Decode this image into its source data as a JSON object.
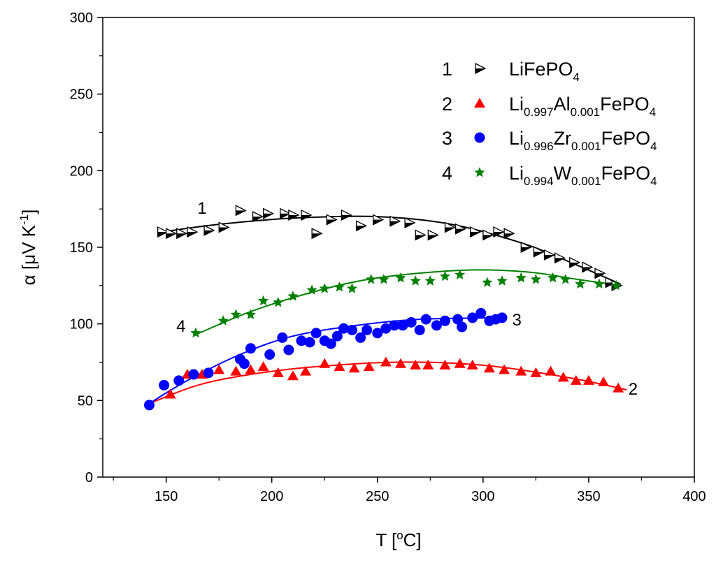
{
  "chart_data": {
    "type": "scatter",
    "title": "",
    "xlabel": {
      "base": "T [",
      "sup": "o",
      "tail": "C]"
    },
    "ylabel": {
      "base": "α [μV K",
      "sup": "-1",
      "tail": "]"
    },
    "xlim": [
      120,
      400
    ],
    "ylim": [
      0,
      300
    ],
    "xticks": [
      150,
      200,
      250,
      300,
      350,
      400
    ],
    "yticks": [
      0,
      50,
      100,
      150,
      200,
      250,
      300
    ],
    "xtick_labels": [
      "150",
      "200",
      "250",
      "300",
      "350",
      "400"
    ],
    "ytick_labels": [
      "0",
      "50",
      "100",
      "150",
      "200",
      "250",
      "300"
    ],
    "grid": false,
    "legend_position": "top-right",
    "series": [
      {
        "id": "1",
        "marker": "triangle-right",
        "color": "#000000",
        "fit_color": "#000000",
        "label_parts": [
          {
            "t": "LiFePO"
          },
          {
            "t": "4",
            "sub": true
          }
        ],
        "points": [
          [
            148,
            160
          ],
          [
            152,
            159
          ],
          [
            157,
            159
          ],
          [
            162,
            160
          ],
          [
            170,
            161
          ],
          [
            177,
            163
          ],
          [
            185,
            174
          ],
          [
            193,
            170
          ],
          [
            198,
            172
          ],
          [
            206,
            172
          ],
          [
            210,
            171
          ],
          [
            216,
            171
          ],
          [
            221,
            159
          ],
          [
            228,
            168
          ],
          [
            235,
            171
          ],
          [
            242,
            164
          ],
          [
            250,
            168
          ],
          [
            258,
            167
          ],
          [
            265,
            166
          ],
          [
            270,
            158
          ],
          [
            276,
            158
          ],
          [
            284,
            163
          ],
          [
            289,
            162
          ],
          [
            296,
            160
          ],
          [
            302,
            158
          ],
          [
            307,
            160
          ],
          [
            312,
            159
          ],
          [
            320,
            150
          ],
          [
            326,
            147
          ],
          [
            331,
            145
          ],
          [
            336,
            143
          ],
          [
            343,
            140
          ],
          [
            349,
            137
          ],
          [
            355,
            133
          ],
          [
            360,
            127
          ],
          [
            363,
            125
          ]
        ],
        "fit": [
          [
            148,
            160
          ],
          [
            175,
            165
          ],
          [
            210,
            169
          ],
          [
            250,
            170
          ],
          [
            285,
            165
          ],
          [
            320,
            152
          ],
          [
            345,
            138
          ],
          [
            365,
            126
          ]
        ]
      },
      {
        "id": "2",
        "marker": "triangle-up",
        "color": "#ff0000",
        "fit_color": "#ff0000",
        "label_parts": [
          {
            "t": "Li"
          },
          {
            "t": "0.997",
            "sub": true
          },
          {
            "t": "Al"
          },
          {
            "t": "0.001",
            "sub": true
          },
          {
            "t": "FePO"
          },
          {
            "t": "4",
            "sub": true
          }
        ],
        "points": [
          [
            152,
            54
          ],
          [
            160,
            67
          ],
          [
            167,
            67
          ],
          [
            175,
            70
          ],
          [
            183,
            69
          ],
          [
            190,
            70
          ],
          [
            196,
            72
          ],
          [
            203,
            68
          ],
          [
            210,
            66
          ],
          [
            216,
            69
          ],
          [
            225,
            74
          ],
          [
            232,
            72
          ],
          [
            239,
            71
          ],
          [
            246,
            72
          ],
          [
            254,
            75
          ],
          [
            261,
            74
          ],
          [
            268,
            73
          ],
          [
            274,
            73
          ],
          [
            282,
            73
          ],
          [
            289,
            74
          ],
          [
            295,
            73
          ],
          [
            303,
            71
          ],
          [
            310,
            70
          ],
          [
            318,
            69
          ],
          [
            325,
            68
          ],
          [
            332,
            69
          ],
          [
            338,
            65
          ],
          [
            344,
            63
          ],
          [
            350,
            63
          ],
          [
            357,
            62
          ],
          [
            364,
            58
          ]
        ],
        "fit": [
          [
            142,
            48
          ],
          [
            165,
            60
          ],
          [
            190,
            67
          ],
          [
            220,
            72
          ],
          [
            260,
            75
          ],
          [
            300,
            73
          ],
          [
            340,
            65
          ],
          [
            368,
            57
          ]
        ]
      },
      {
        "id": "3",
        "marker": "circle",
        "color": "#0000ff",
        "fit_color": "#0000ff",
        "label_parts": [
          {
            "t": "Li"
          },
          {
            "t": "0.996",
            "sub": true
          },
          {
            "t": "Zr"
          },
          {
            "t": "0.001",
            "sub": true
          },
          {
            "t": "FePO"
          },
          {
            "t": "4",
            "sub": true
          }
        ],
        "points": [
          [
            142,
            47
          ],
          [
            149,
            60
          ],
          [
            156,
            63
          ],
          [
            163,
            67
          ],
          [
            170,
            68
          ],
          [
            185,
            77
          ],
          [
            187,
            74
          ],
          [
            190,
            84
          ],
          [
            199,
            80
          ],
          [
            205,
            91
          ],
          [
            208,
            83
          ],
          [
            214,
            89
          ],
          [
            218,
            88
          ],
          [
            221,
            94
          ],
          [
            225,
            89
          ],
          [
            228,
            87
          ],
          [
            231,
            92
          ],
          [
            234,
            97
          ],
          [
            238,
            96
          ],
          [
            242,
            91
          ],
          [
            245,
            96
          ],
          [
            250,
            94
          ],
          [
            254,
            97
          ],
          [
            258,
            99
          ],
          [
            262,
            99
          ],
          [
            266,
            101
          ],
          [
            270,
            96
          ],
          [
            273,
            103
          ],
          [
            278,
            99
          ],
          [
            282,
            102
          ],
          [
            288,
            103
          ],
          [
            290,
            98
          ],
          [
            295,
            104
          ],
          [
            299,
            107
          ],
          [
            303,
            102
          ],
          [
            306,
            103
          ],
          [
            309,
            104
          ]
        ],
        "fit": [
          [
            142,
            48
          ],
          [
            160,
            63
          ],
          [
            185,
            80
          ],
          [
            210,
            92
          ],
          [
            240,
            99
          ],
          [
            270,
            103
          ],
          [
            308,
            104
          ]
        ]
      },
      {
        "id": "4",
        "marker": "star",
        "color": "#008000",
        "fit_color": "#008000",
        "label_parts": [
          {
            "t": "Li"
          },
          {
            "t": "0.994",
            "sub": true
          },
          {
            "t": "W"
          },
          {
            "t": "0.001",
            "sub": true
          },
          {
            "t": "FePO"
          },
          {
            "t": "4",
            "sub": true
          }
        ],
        "points": [
          [
            164,
            94
          ],
          [
            177,
            102
          ],
          [
            183,
            106
          ],
          [
            190,
            106
          ],
          [
            196,
            115
          ],
          [
            203,
            114
          ],
          [
            210,
            118
          ],
          [
            219,
            122
          ],
          [
            225,
            123
          ],
          [
            232,
            124
          ],
          [
            238,
            123
          ],
          [
            247,
            129
          ],
          [
            253,
            129
          ],
          [
            261,
            130
          ],
          [
            268,
            128
          ],
          [
            275,
            128
          ],
          [
            282,
            131
          ],
          [
            289,
            132
          ],
          [
            302,
            127
          ],
          [
            309,
            128
          ],
          [
            318,
            130
          ],
          [
            325,
            129
          ],
          [
            333,
            130
          ],
          [
            339,
            129
          ],
          [
            346,
            126
          ],
          [
            355,
            126
          ],
          [
            363,
            125
          ]
        ],
        "fit": [
          [
            164,
            93
          ],
          [
            190,
            108
          ],
          [
            220,
            121
          ],
          [
            250,
            130
          ],
          [
            290,
            135
          ],
          [
            320,
            134
          ],
          [
            345,
            129
          ],
          [
            365,
            125
          ]
        ]
      }
    ],
    "curve_labels": [
      {
        "text": "1",
        "x": 167,
        "y": 176
      },
      {
        "text": "4",
        "x": 157,
        "y": 99
      },
      {
        "text": "3",
        "x": 316,
        "y": 103
      },
      {
        "text": "2",
        "x": 371,
        "y": 58
      }
    ]
  }
}
